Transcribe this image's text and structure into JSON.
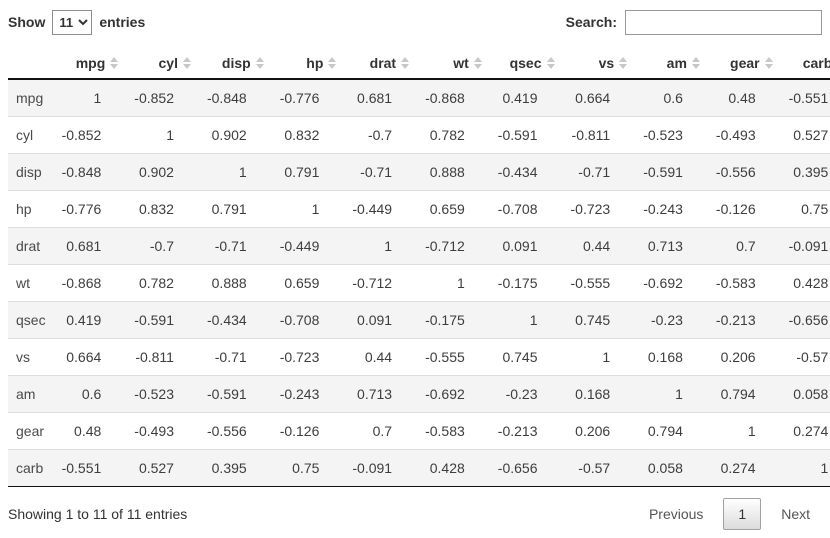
{
  "length_control": {
    "prefix": "Show",
    "selected_value": "11",
    "suffix": "entries"
  },
  "search": {
    "label": "Search:",
    "value": "",
    "placeholder": ""
  },
  "table": {
    "row_header_label": "",
    "columns": [
      "mpg",
      "cyl",
      "disp",
      "hp",
      "drat",
      "wt",
      "qsec",
      "vs",
      "am",
      "gear",
      "carb"
    ],
    "rows": [
      {
        "name": "mpg",
        "values": [
          "1",
          "-0.852",
          "-0.848",
          "-0.776",
          "0.681",
          "-0.868",
          "0.419",
          "0.664",
          "0.6",
          "0.48",
          "-0.551"
        ]
      },
      {
        "name": "cyl",
        "values": [
          "-0.852",
          "1",
          "0.902",
          "0.832",
          "-0.7",
          "0.782",
          "-0.591",
          "-0.811",
          "-0.523",
          "-0.493",
          "0.527"
        ]
      },
      {
        "name": "disp",
        "values": [
          "-0.848",
          "0.902",
          "1",
          "0.791",
          "-0.71",
          "0.888",
          "-0.434",
          "-0.71",
          "-0.591",
          "-0.556",
          "0.395"
        ]
      },
      {
        "name": "hp",
        "values": [
          "-0.776",
          "0.832",
          "0.791",
          "1",
          "-0.449",
          "0.659",
          "-0.708",
          "-0.723",
          "-0.243",
          "-0.126",
          "0.75"
        ]
      },
      {
        "name": "drat",
        "values": [
          "0.681",
          "-0.7",
          "-0.71",
          "-0.449",
          "1",
          "-0.712",
          "0.091",
          "0.44",
          "0.713",
          "0.7",
          "-0.091"
        ]
      },
      {
        "name": "wt",
        "values": [
          "-0.868",
          "0.782",
          "0.888",
          "0.659",
          "-0.712",
          "1",
          "-0.175",
          "-0.555",
          "-0.692",
          "-0.583",
          "0.428"
        ]
      },
      {
        "name": "qsec",
        "values": [
          "0.419",
          "-0.591",
          "-0.434",
          "-0.708",
          "0.091",
          "-0.175",
          "1",
          "0.745",
          "-0.23",
          "-0.213",
          "-0.656"
        ]
      },
      {
        "name": "vs",
        "values": [
          "0.664",
          "-0.811",
          "-0.71",
          "-0.723",
          "0.44",
          "-0.555",
          "0.745",
          "1",
          "0.168",
          "0.206",
          "-0.57"
        ]
      },
      {
        "name": "am",
        "values": [
          "0.6",
          "-0.523",
          "-0.591",
          "-0.243",
          "0.713",
          "-0.692",
          "-0.23",
          "0.168",
          "1",
          "0.794",
          "0.058"
        ]
      },
      {
        "name": "gear",
        "values": [
          "0.48",
          "-0.493",
          "-0.556",
          "-0.126",
          "0.7",
          "-0.583",
          "-0.213",
          "0.206",
          "0.794",
          "1",
          "0.274"
        ]
      },
      {
        "name": "carb",
        "values": [
          "-0.551",
          "0.527",
          "0.395",
          "0.75",
          "-0.091",
          "0.428",
          "-0.656",
          "-0.57",
          "0.058",
          "0.274",
          "1"
        ]
      }
    ]
  },
  "footer": {
    "info": "Showing 1 to 11 of 11 entries",
    "pagination": {
      "previous_label": "Previous",
      "current_page": "1",
      "next_label": "Next"
    }
  },
  "colors": {
    "stripe_row": "#f4f4f4",
    "header_border": "#111111",
    "row_border": "#dddddd",
    "sort_icon": "#c8c8c8"
  }
}
